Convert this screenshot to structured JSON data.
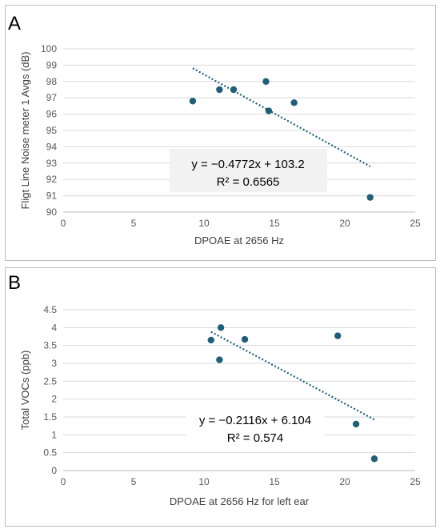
{
  "chart_data": [
    {
      "panel_label": "A",
      "type": "scatter",
      "xlabel": "DPOAE at 2656 Hz",
      "ylabel": "Fligt Line Noise meter 1 Avgs (dB)",
      "xlim": [
        0,
        25
      ],
      "ylim": [
        90,
        100
      ],
      "xticks": [
        0,
        5,
        10,
        15,
        20,
        25
      ],
      "yticks": [
        90,
        91,
        92,
        93,
        94,
        95,
        96,
        97,
        98,
        99,
        100
      ],
      "grid": "horizontal",
      "points": [
        {
          "x": 9.2,
          "y": 96.8
        },
        {
          "x": 11.1,
          "y": 97.5
        },
        {
          "x": 12.1,
          "y": 97.5
        },
        {
          "x": 14.4,
          "y": 98.0
        },
        {
          "x": 14.6,
          "y": 96.2
        },
        {
          "x": 16.4,
          "y": 96.7
        },
        {
          "x": 21.8,
          "y": 90.9
        }
      ],
      "trendline": {
        "slope": -0.4772,
        "intercept": 103.2,
        "x_range": [
          9.2,
          21.8
        ]
      },
      "equation": "y =  −0.4772x + 103.2",
      "r2_text": "R² = 0.6565",
      "marker_color": "#1f5f7a"
    },
    {
      "panel_label": "B",
      "type": "scatter",
      "xlabel": "DPOAE at 2656 Hz for left ear",
      "ylabel": "Total VOCs (ppb)",
      "xlim": [
        0,
        25
      ],
      "ylim": [
        0,
        4.5
      ],
      "xticks": [
        0,
        5,
        10,
        15,
        20,
        25
      ],
      "yticks": [
        0,
        0.5,
        1,
        1.5,
        2,
        2.5,
        3,
        3.5,
        4,
        4.5
      ],
      "grid": "horizontal",
      "points": [
        {
          "x": 10.5,
          "y": 3.65
        },
        {
          "x": 11.1,
          "y": 3.1
        },
        {
          "x": 11.2,
          "y": 4.0
        },
        {
          "x": 12.9,
          "y": 3.67
        },
        {
          "x": 19.5,
          "y": 3.77
        },
        {
          "x": 20.8,
          "y": 1.3
        },
        {
          "x": 22.1,
          "y": 0.33
        }
      ],
      "trendline": {
        "slope": -0.2116,
        "intercept": 6.104,
        "x_range": [
          10.5,
          22.1
        ]
      },
      "equation": "y = −0.2116x + 6.104",
      "r2_text": "R² = 0.574",
      "marker_color": "#1f5f7a"
    }
  ]
}
